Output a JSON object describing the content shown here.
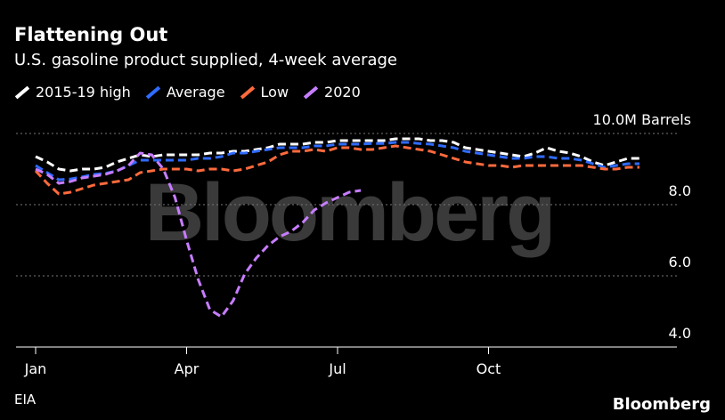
{
  "header": {
    "title": "Flattening Out",
    "subtitle": "U.S. gasoline product supplied, 4-week average"
  },
  "footer": {
    "source": "EIA",
    "brand": "Bloomberg"
  },
  "colors": {
    "high": "#ffffff",
    "average": "#2f6bff",
    "low": "#ff6a3d",
    "y2020": "#c77dff",
    "grid": "#777777",
    "watermark": "#3a3a3a"
  },
  "chart_data": {
    "type": "line",
    "title": "Flattening Out",
    "subtitle": "U.S. gasoline product supplied, 4-week average",
    "watermark": "Bloomberg",
    "xlabel": "",
    "ylabel": "",
    "y_unit_label": "10.0M Barrels",
    "ylim": [
      4,
      10
    ],
    "y_ticks": [
      {
        "value": 10,
        "label": "10.0M Barrels"
      },
      {
        "value": 8,
        "label": "8.0"
      },
      {
        "value": 6,
        "label": "6.0"
      },
      {
        "value": 4,
        "label": "4.0"
      }
    ],
    "x_ticks": [
      {
        "week": 1,
        "label": "Jan"
      },
      {
        "week": 14,
        "label": "Apr"
      },
      {
        "week": 27,
        "label": "Jul"
      },
      {
        "week": 40,
        "label": "Oct"
      }
    ],
    "x_range": [
      1,
      53
    ],
    "grid": true,
    "legend_position": "top-left",
    "series": [
      {
        "name": "2015-19 high",
        "color": "#ffffff",
        "style": "dashed",
        "x": [
          1,
          2,
          3,
          4,
          5,
          6,
          7,
          8,
          9,
          10,
          11,
          12,
          13,
          14,
          15,
          16,
          17,
          18,
          19,
          20,
          21,
          22,
          23,
          24,
          25,
          26,
          27,
          28,
          29,
          30,
          31,
          32,
          33,
          34,
          35,
          36,
          37,
          38,
          39,
          40,
          41,
          42,
          43,
          44,
          45,
          46,
          47,
          48,
          49,
          50,
          51,
          52,
          53
        ],
        "values": [
          9.35,
          9.2,
          9.0,
          8.95,
          9.0,
          9.0,
          9.05,
          9.2,
          9.3,
          9.4,
          9.35,
          9.4,
          9.4,
          9.4,
          9.4,
          9.45,
          9.45,
          9.5,
          9.5,
          9.55,
          9.6,
          9.7,
          9.7,
          9.7,
          9.75,
          9.75,
          9.8,
          9.8,
          9.8,
          9.8,
          9.8,
          9.85,
          9.85,
          9.85,
          9.8,
          9.8,
          9.75,
          9.6,
          9.55,
          9.5,
          9.45,
          9.4,
          9.35,
          9.45,
          9.6,
          9.5,
          9.45,
          9.35,
          9.2,
          9.1,
          9.2,
          9.3,
          9.3
        ]
      },
      {
        "name": "Average",
        "color": "#2f6bff",
        "style": "dashed",
        "x": [
          1,
          2,
          3,
          4,
          5,
          6,
          7,
          8,
          9,
          10,
          11,
          12,
          13,
          14,
          15,
          16,
          17,
          18,
          19,
          20,
          21,
          22,
          23,
          24,
          25,
          26,
          27,
          28,
          29,
          30,
          31,
          32,
          33,
          34,
          35,
          36,
          37,
          38,
          39,
          40,
          41,
          42,
          43,
          44,
          45,
          46,
          47,
          48,
          49,
          50,
          51,
          52,
          53
        ],
        "values": [
          9.1,
          8.9,
          8.7,
          8.72,
          8.78,
          8.85,
          8.88,
          8.95,
          9.1,
          9.25,
          9.25,
          9.25,
          9.25,
          9.25,
          9.3,
          9.3,
          9.35,
          9.45,
          9.45,
          9.5,
          9.55,
          9.6,
          9.6,
          9.6,
          9.65,
          9.65,
          9.7,
          9.7,
          9.7,
          9.72,
          9.72,
          9.75,
          9.75,
          9.72,
          9.7,
          9.65,
          9.6,
          9.5,
          9.45,
          9.4,
          9.35,
          9.3,
          9.3,
          9.35,
          9.35,
          9.3,
          9.3,
          9.25,
          9.15,
          9.05,
          9.1,
          9.15,
          9.15
        ]
      },
      {
        "name": "Low",
        "color": "#ff6a3d",
        "style": "dashed",
        "x": [
          1,
          2,
          3,
          4,
          5,
          6,
          7,
          8,
          9,
          10,
          11,
          12,
          13,
          14,
          15,
          16,
          17,
          18,
          19,
          20,
          21,
          22,
          23,
          24,
          25,
          26,
          27,
          28,
          29,
          30,
          31,
          32,
          33,
          34,
          35,
          36,
          37,
          38,
          39,
          40,
          41,
          42,
          43,
          44,
          45,
          46,
          47,
          48,
          49,
          50,
          51,
          52,
          53
        ],
        "values": [
          8.95,
          8.6,
          8.3,
          8.35,
          8.45,
          8.55,
          8.6,
          8.65,
          8.7,
          8.9,
          8.95,
          9.0,
          9.0,
          9.0,
          8.95,
          9.0,
          9.0,
          8.95,
          9.0,
          9.1,
          9.2,
          9.4,
          9.5,
          9.5,
          9.55,
          9.5,
          9.6,
          9.6,
          9.55,
          9.55,
          9.6,
          9.65,
          9.6,
          9.55,
          9.5,
          9.4,
          9.3,
          9.2,
          9.15,
          9.1,
          9.1,
          9.05,
          9.1,
          9.1,
          9.1,
          9.1,
          9.1,
          9.1,
          9.05,
          9.0,
          9.0,
          9.05,
          9.05
        ]
      },
      {
        "name": "2020",
        "color": "#c77dff",
        "style": "dashed",
        "x": [
          1,
          2,
          3,
          4,
          5,
          6,
          7,
          8,
          9,
          10,
          11,
          12,
          13,
          14,
          15,
          16,
          17,
          18,
          19,
          20,
          21,
          22,
          23,
          24,
          25,
          26,
          27,
          28,
          29
        ],
        "values": [
          9.0,
          8.85,
          8.6,
          8.65,
          8.75,
          8.8,
          8.85,
          8.95,
          9.1,
          9.45,
          9.4,
          9.0,
          8.2,
          7.0,
          5.9,
          5.05,
          4.85,
          5.3,
          6.05,
          6.5,
          6.85,
          7.1,
          7.25,
          7.5,
          7.85,
          8.05,
          8.2,
          8.35,
          8.4
        ]
      }
    ]
  }
}
